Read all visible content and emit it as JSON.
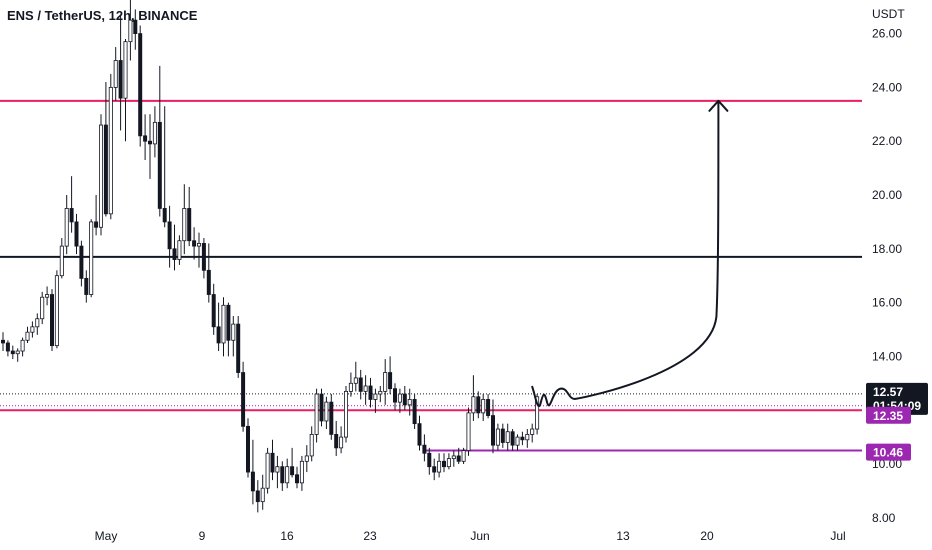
{
  "header": {
    "title": "ENS / TetherUS, 12h, BINANCE"
  },
  "chart_data": {
    "type": "candlestick",
    "currency_label": "USDT",
    "ylim": [
      8.0,
      27.0
    ],
    "y_ticks": [
      8.0,
      10.0,
      12.0,
      14.0,
      16.0,
      18.0,
      20.0,
      22.0,
      24.0,
      26.0
    ],
    "y_tick_labels": [
      "8.00",
      "10.00",
      "12.00",
      "14.00",
      "16.00",
      "18.00",
      "20.00",
      "22.00",
      "24.00",
      "26.00"
    ],
    "x_tick_labels": [
      "May",
      "9",
      "16",
      "23",
      "Jun",
      "13",
      "20",
      "Jul"
    ],
    "colors": {
      "up": "#ffffff",
      "down": "#131722",
      "red_line": "#e91e63",
      "purple": "#9c27b0",
      "black": "#131722"
    },
    "horizontal_lines": [
      {
        "price": 23.5,
        "color": "#e91e63"
      },
      {
        "price": 17.7,
        "color": "#131722"
      },
      {
        "price": 12.0,
        "color": "#e91e63"
      },
      {
        "price": 10.5,
        "color": "#9c27b0",
        "partial": true
      }
    ],
    "price_tags": [
      {
        "label": "12.57",
        "sub": "01:54:09",
        "price": 12.57,
        "color": "#131722"
      },
      {
        "label": "12.35",
        "price": 12.35,
        "color": "#9c27b0"
      },
      {
        "label": "10.46",
        "price": 10.46,
        "color": "#9c27b0"
      }
    ],
    "candles": [
      [
        14.6,
        14.9,
        14.2,
        14.5
      ],
      [
        14.5,
        14.6,
        14.0,
        14.2
      ],
      [
        14.2,
        14.4,
        13.9,
        14.1
      ],
      [
        14.1,
        14.3,
        13.8,
        14.2
      ],
      [
        14.2,
        14.7,
        14.0,
        14.6
      ],
      [
        14.6,
        15.1,
        14.5,
        14.9
      ],
      [
        14.9,
        15.3,
        14.7,
        15.1
      ],
      [
        15.1,
        15.6,
        14.8,
        15.4
      ],
      [
        15.4,
        16.4,
        15.2,
        16.2
      ],
      [
        16.2,
        16.6,
        15.9,
        16.3
      ],
      [
        16.3,
        16.5,
        14.2,
        14.4
      ],
      [
        14.4,
        17.2,
        14.3,
        17.0
      ],
      [
        17.0,
        18.4,
        16.9,
        18.1
      ],
      [
        18.1,
        20.0,
        17.8,
        19.5
      ],
      [
        19.5,
        20.7,
        18.6,
        19.0
      ],
      [
        19.0,
        19.3,
        17.8,
        18.1
      ],
      [
        18.1,
        18.3,
        16.6,
        16.9
      ],
      [
        16.9,
        17.2,
        16.0,
        16.3
      ],
      [
        16.3,
        19.1,
        16.2,
        19.0
      ],
      [
        19.0,
        20.0,
        18.5,
        18.8
      ],
      [
        18.8,
        23.0,
        18.5,
        22.6
      ],
      [
        22.6,
        24.2,
        19.2,
        19.3
      ],
      [
        19.3,
        24.5,
        19.1,
        24.0
      ],
      [
        24.0,
        25.5,
        23.5,
        25.0
      ],
      [
        25.0,
        26.7,
        22.4,
        23.6
      ],
      [
        23.6,
        25.8,
        22.0,
        25.7
      ],
      [
        25.7,
        27.5,
        25.0,
        26.5
      ],
      [
        26.5,
        26.9,
        25.4,
        26.0
      ],
      [
        26.0,
        26.3,
        21.8,
        22.2
      ],
      [
        22.2,
        23.0,
        21.3,
        22.0
      ],
      [
        22.0,
        23.0,
        20.6,
        21.9
      ],
      [
        21.9,
        23.3,
        21.4,
        22.7
      ],
      [
        22.7,
        24.8,
        19.2,
        19.5
      ],
      [
        19.5,
        23.3,
        18.8,
        19.0
      ],
      [
        19.0,
        19.6,
        17.3,
        18.0
      ],
      [
        18.0,
        18.9,
        17.2,
        17.6
      ],
      [
        17.6,
        18.5,
        17.4,
        18.3
      ],
      [
        18.3,
        20.4,
        17.8,
        19.5
      ],
      [
        19.5,
        20.3,
        18.1,
        18.3
      ],
      [
        18.3,
        18.8,
        17.6,
        18.1
      ],
      [
        18.1,
        18.6,
        17.3,
        18.2
      ],
      [
        18.2,
        18.4,
        16.9,
        17.2
      ],
      [
        17.2,
        18.2,
        16.0,
        16.3
      ],
      [
        16.3,
        16.7,
        14.8,
        15.1
      ],
      [
        15.1,
        16.0,
        14.2,
        14.5
      ],
      [
        14.5,
        16.2,
        14.0,
        15.9
      ],
      [
        15.9,
        16.0,
        14.0,
        14.6
      ],
      [
        14.6,
        15.5,
        14.0,
        15.2
      ],
      [
        15.2,
        15.5,
        13.2,
        13.4
      ],
      [
        13.4,
        13.8,
        11.2,
        11.4
      ],
      [
        11.4,
        11.7,
        9.5,
        9.7
      ],
      [
        9.7,
        10.9,
        8.5,
        9.0
      ],
      [
        9.0,
        9.4,
        8.2,
        8.6
      ],
      [
        8.6,
        9.6,
        8.3,
        9.1
      ],
      [
        9.1,
        10.6,
        8.9,
        10.4
      ],
      [
        10.4,
        10.9,
        9.4,
        9.7
      ],
      [
        9.7,
        10.3,
        9.1,
        9.9
      ],
      [
        9.9,
        10.1,
        9.0,
        9.3
      ],
      [
        9.3,
        10.2,
        9.1,
        9.9
      ],
      [
        9.9,
        10.6,
        9.5,
        9.6
      ],
      [
        9.6,
        9.9,
        9.1,
        9.3
      ],
      [
        9.3,
        10.3,
        9.0,
        10.1
      ],
      [
        10.1,
        10.7,
        9.7,
        10.3
      ],
      [
        10.3,
        11.4,
        10.1,
        11.1
      ],
      [
        11.1,
        12.8,
        10.8,
        12.6
      ],
      [
        12.6,
        12.8,
        11.4,
        11.6
      ],
      [
        11.6,
        12.5,
        11.3,
        12.3
      ],
      [
        12.3,
        12.6,
        10.9,
        11.1
      ],
      [
        11.1,
        11.6,
        10.3,
        10.6
      ],
      [
        10.6,
        11.4,
        10.4,
        11.0
      ],
      [
        11.0,
        12.9,
        10.8,
        12.7
      ],
      [
        12.7,
        13.4,
        12.5,
        13.0
      ],
      [
        13.0,
        13.8,
        12.7,
        13.2
      ],
      [
        13.2,
        13.5,
        12.4,
        12.7
      ],
      [
        12.7,
        13.3,
        12.2,
        12.9
      ],
      [
        12.9,
        13.2,
        12.1,
        12.4
      ],
      [
        12.4,
        12.8,
        11.9,
        12.6
      ],
      [
        12.6,
        12.9,
        12.3,
        12.7
      ],
      [
        12.7,
        13.9,
        12.2,
        13.4
      ],
      [
        13.4,
        14.0,
        12.6,
        12.8
      ],
      [
        12.8,
        13.0,
        12.0,
        12.3
      ],
      [
        12.3,
        12.8,
        11.9,
        12.6
      ],
      [
        12.6,
        12.9,
        12.0,
        12.2
      ],
      [
        12.2,
        12.8,
        11.8,
        12.4
      ],
      [
        12.4,
        12.6,
        11.3,
        11.5
      ],
      [
        11.5,
        11.8,
        10.5,
        10.7
      ],
      [
        10.7,
        11.1,
        10.1,
        10.4
      ],
      [
        10.4,
        10.6,
        9.6,
        9.9
      ],
      [
        9.9,
        10.2,
        9.4,
        9.7
      ],
      [
        9.7,
        10.4,
        9.5,
        10.1
      ],
      [
        10.1,
        10.4,
        9.7,
        9.9
      ],
      [
        9.9,
        10.4,
        9.8,
        10.2
      ],
      [
        10.2,
        10.5,
        9.9,
        10.3
      ],
      [
        10.3,
        10.6,
        10.0,
        10.1
      ],
      [
        10.1,
        10.6,
        10.0,
        10.5
      ],
      [
        10.5,
        12.1,
        10.3,
        11.9
      ],
      [
        11.9,
        13.3,
        11.6,
        12.5
      ],
      [
        12.5,
        12.7,
        11.7,
        11.9
      ],
      [
        11.9,
        12.6,
        11.6,
        12.4
      ],
      [
        12.4,
        12.6,
        11.7,
        11.8
      ],
      [
        11.8,
        12.4,
        10.4,
        10.7
      ],
      [
        10.7,
        11.5,
        10.5,
        11.3
      ],
      [
        11.3,
        11.5,
        10.6,
        10.8
      ],
      [
        10.8,
        11.5,
        10.5,
        11.2
      ],
      [
        11.2,
        11.3,
        10.5,
        10.7
      ],
      [
        10.7,
        11.1,
        10.5,
        11.0
      ],
      [
        11.0,
        11.2,
        10.7,
        10.9
      ],
      [
        10.9,
        11.3,
        10.6,
        11.1
      ],
      [
        11.1,
        11.5,
        10.8,
        11.3
      ],
      [
        11.3,
        12.6,
        11.1,
        12.5
      ]
    ],
    "annotations": [
      {
        "type": "wave-arrow",
        "from_candle": 108,
        "to_candle": 146,
        "target": 23.5
      }
    ]
  }
}
